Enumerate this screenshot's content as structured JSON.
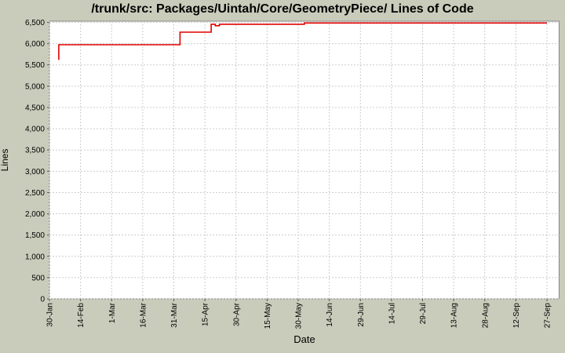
{
  "window": {
    "background_color": "#caccbb"
  },
  "chart_data": {
    "type": "line",
    "title": "/trunk/src: Packages/Uintah/Core/GeometryPiece/ Lines of Code",
    "xlabel": "Date",
    "ylabel": "Lines",
    "line_color": "#e00000",
    "plot_background": "#ffffff",
    "grid_color": "#cccccc",
    "plot_border_color": "#858585",
    "tick_color": "#555555",
    "grid": true,
    "legend": "none",
    "ylim": [
      0,
      6500
    ],
    "y_tick_step": 500,
    "y_tick_labels": [
      "0",
      "500",
      "1,000",
      "1,500",
      "2,000",
      "2,500",
      "3,000",
      "3,500",
      "4,000",
      "4,500",
      "5,000",
      "5,500",
      "6,000",
      "6,500"
    ],
    "x_tick_labels": [
      "30-Jan",
      "14-Feb",
      "1-Mar",
      "16-Mar",
      "31-Mar",
      "15-Apr",
      "30-Apr",
      "15-May",
      "30-May",
      "14-Jun",
      "29-Jun",
      "14-Jul",
      "29-Jul",
      "13-Aug",
      "28-Aug",
      "12-Sep",
      "27-Sep"
    ],
    "x_tick_interval_days": 15,
    "series": [
      {
        "name": "Lines of Code",
        "color": "#e00000",
        "points": [
          {
            "date": "3-Feb",
            "day": 4.5,
            "lines": 5620
          },
          {
            "date": "3-Feb",
            "day": 4.5,
            "lines": 5975
          },
          {
            "date": "2-Apr",
            "day": 63,
            "lines": 5975
          },
          {
            "date": "2-Apr",
            "day": 63,
            "lines": 6270
          },
          {
            "date": "17-Apr",
            "day": 78,
            "lines": 6270
          },
          {
            "date": "17-Apr",
            "day": 78,
            "lines": 6455
          },
          {
            "date": "20-Apr",
            "day": 80,
            "lines": 6455
          },
          {
            "date": "20-Apr",
            "day": 80,
            "lines": 6420
          },
          {
            "date": "22-Apr",
            "day": 82,
            "lines": 6420
          },
          {
            "date": "22-Apr",
            "day": 82,
            "lines": 6455
          },
          {
            "date": "2-Jun",
            "day": 123,
            "lines": 6455
          },
          {
            "date": "2-Jun",
            "day": 123,
            "lines": 6485
          },
          {
            "date": "27-Sep",
            "day": 240,
            "lines": 6485
          }
        ]
      }
    ]
  }
}
